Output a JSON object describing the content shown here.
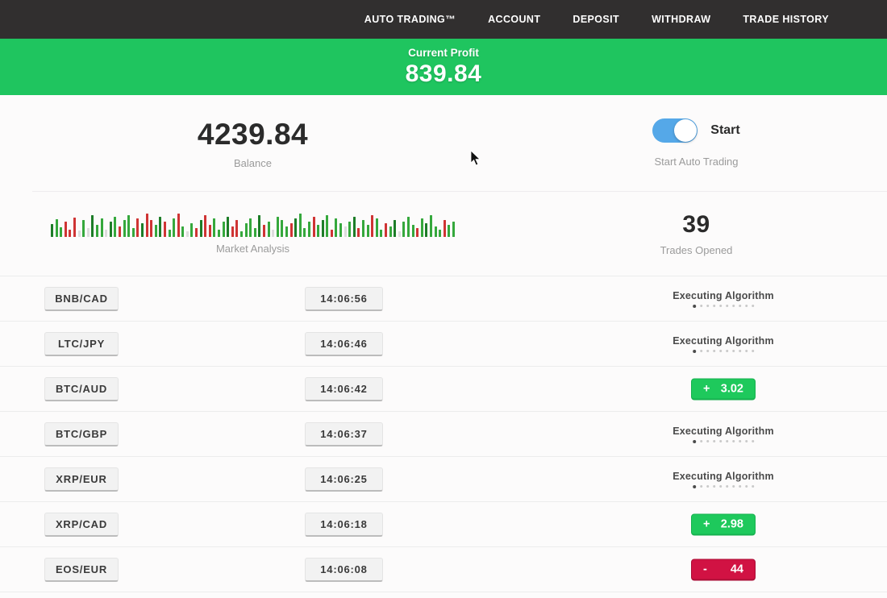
{
  "nav": {
    "items": [
      "AUTO TRADING™",
      "ACCOUNT",
      "DEPOSIT",
      "WITHDRAW",
      "TRADE HISTORY"
    ]
  },
  "profit_banner": {
    "label": "Current Profit",
    "value": "839.84"
  },
  "stats": {
    "balance": {
      "value": "4239.84",
      "label": "Balance"
    },
    "auto_trading": {
      "toggle_label": "Start",
      "label": "Start Auto Trading",
      "toggle_on": true
    },
    "trades_opened": {
      "value": "39",
      "label": "Trades Opened"
    },
    "market_analysis": {
      "label": "Market Analysis",
      "colors": {
        "g": "#35a83c",
        "G": "#1d7d28",
        "r": "#cf3434",
        "l": "#dcdcdc"
      },
      "bars": [
        [
          16,
          "G"
        ],
        [
          22,
          "g"
        ],
        [
          12,
          "g"
        ],
        [
          19,
          "r"
        ],
        [
          9,
          "r"
        ],
        [
          24,
          "r"
        ],
        [
          8,
          "l"
        ],
        [
          21,
          "g"
        ],
        [
          11,
          "l"
        ],
        [
          27,
          "G"
        ],
        [
          15,
          "g"
        ],
        [
          23,
          "g"
        ],
        [
          9,
          "l"
        ],
        [
          19,
          "G"
        ],
        [
          25,
          "g"
        ],
        [
          13,
          "r"
        ],
        [
          21,
          "g"
        ],
        [
          27,
          "g"
        ],
        [
          11,
          "g"
        ],
        [
          23,
          "r"
        ],
        [
          17,
          "G"
        ],
        [
          29,
          "r"
        ],
        [
          21,
          "r"
        ],
        [
          15,
          "g"
        ],
        [
          25,
          "G"
        ],
        [
          19,
          "r"
        ],
        [
          9,
          "g"
        ],
        [
          23,
          "g"
        ],
        [
          29,
          "r"
        ],
        [
          13,
          "g"
        ],
        [
          7,
          "l"
        ],
        [
          17,
          "g"
        ],
        [
          11,
          "r"
        ],
        [
          21,
          "G"
        ],
        [
          27,
          "r"
        ],
        [
          15,
          "r"
        ],
        [
          23,
          "g"
        ],
        [
          9,
          "g"
        ],
        [
          19,
          "g"
        ],
        [
          25,
          "G"
        ],
        [
          13,
          "r"
        ],
        [
          21,
          "r"
        ],
        [
          7,
          "g"
        ],
        [
          17,
          "g"
        ],
        [
          23,
          "g"
        ],
        [
          11,
          "g"
        ],
        [
          27,
          "G"
        ],
        [
          15,
          "r"
        ],
        [
          19,
          "g"
        ],
        [
          9,
          "l"
        ],
        [
          25,
          "g"
        ],
        [
          21,
          "g"
        ],
        [
          13,
          "g"
        ],
        [
          17,
          "r"
        ],
        [
          23,
          "G"
        ],
        [
          29,
          "g"
        ],
        [
          11,
          "g"
        ],
        [
          19,
          "g"
        ],
        [
          25,
          "r"
        ],
        [
          15,
          "g"
        ],
        [
          21,
          "G"
        ],
        [
          27,
          "g"
        ],
        [
          9,
          "r"
        ],
        [
          23,
          "g"
        ],
        [
          17,
          "g"
        ],
        [
          13,
          "l"
        ],
        [
          19,
          "g"
        ],
        [
          25,
          "G"
        ],
        [
          11,
          "r"
        ],
        [
          21,
          "g"
        ],
        [
          15,
          "g"
        ],
        [
          27,
          "r"
        ],
        [
          23,
          "g"
        ],
        [
          9,
          "g"
        ],
        [
          17,
          "r"
        ],
        [
          13,
          "g"
        ],
        [
          21,
          "G"
        ],
        [
          7,
          "l"
        ],
        [
          19,
          "g"
        ],
        [
          25,
          "g"
        ],
        [
          15,
          "g"
        ],
        [
          11,
          "r"
        ],
        [
          23,
          "g"
        ],
        [
          17,
          "G"
        ],
        [
          27,
          "g"
        ],
        [
          13,
          "g"
        ],
        [
          9,
          "g"
        ],
        [
          21,
          "r"
        ],
        [
          15,
          "g"
        ],
        [
          19,
          "g"
        ]
      ]
    }
  },
  "table": {
    "executing_label": "Executing Algorithm",
    "progress_dots": 10
  },
  "trades": [
    {
      "pair": "BNB/CAD",
      "time": "14:06:56",
      "status": "executing"
    },
    {
      "pair": "LTC/JPY",
      "time": "14:06:46",
      "status": "executing"
    },
    {
      "pair": "BTC/AUD",
      "time": "14:06:42",
      "status": "win",
      "sign": "+",
      "value": "3.02"
    },
    {
      "pair": "BTC/GBP",
      "time": "14:06:37",
      "status": "executing"
    },
    {
      "pair": "XRP/EUR",
      "time": "14:06:25",
      "status": "executing"
    },
    {
      "pair": "XRP/CAD",
      "time": "14:06:18",
      "status": "win",
      "sign": "+",
      "value": "2.98"
    },
    {
      "pair": "EOS/EUR",
      "time": "14:06:08",
      "status": "loss",
      "sign": "-",
      "value": "44"
    }
  ],
  "colors": {
    "nav_bg": "#312f2f",
    "banner_green": "#1fc55f",
    "toggle_blue": "#55a8e8",
    "badge_green": "#1ec95c",
    "badge_red": "#d11243"
  }
}
